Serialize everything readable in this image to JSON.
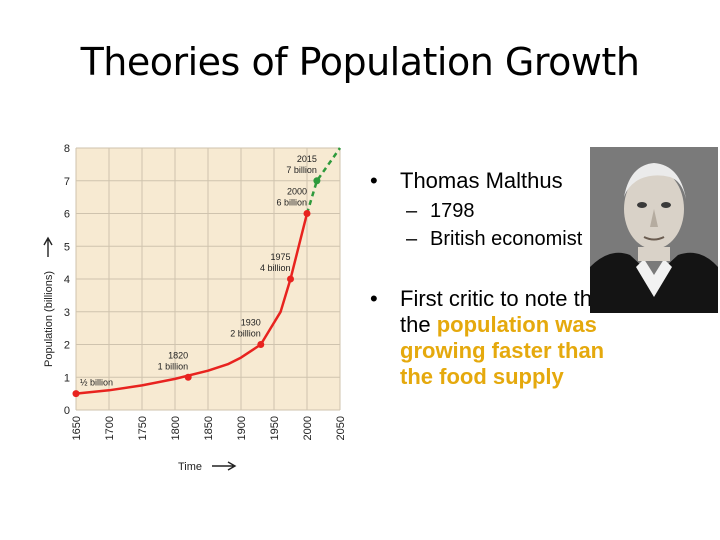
{
  "slide": {
    "title": "Theories of Population Growth"
  },
  "chart_data": {
    "type": "line",
    "ylabel": "Population (billions)",
    "xlabel": "Time",
    "xlim": [
      1650,
      2050
    ],
    "ylim": [
      0,
      8
    ],
    "x_ticks": [
      "1650",
      "1700",
      "1750",
      "1800",
      "1850",
      "1900",
      "1950",
      "2000",
      "2050"
    ],
    "y_ticks": [
      "0",
      "1",
      "2",
      "3",
      "4",
      "5",
      "6",
      "7",
      "8"
    ],
    "grid": true,
    "background_color": "#f7ead2",
    "series": [
      {
        "color": "#e8231f",
        "x": [
          1650,
          1700,
          1750,
          1800,
          1850,
          1880,
          1900,
          1915,
          1930,
          1945,
          1960,
          1975,
          1985,
          2000
        ],
        "y": [
          0.5,
          0.6,
          0.75,
          0.95,
          1.2,
          1.4,
          1.6,
          1.8,
          2.0,
          2.5,
          3.0,
          4.0,
          4.8,
          6.0
        ]
      },
      {
        "color": "#2e9a3c",
        "style": "dashed",
        "x": [
          2000,
          2015,
          2050
        ],
        "y": [
          6.0,
          7.0,
          8.0
        ]
      }
    ],
    "markers": [
      {
        "x": 1650,
        "y": 0.5,
        "label": "½ billion",
        "color": "#e8231f"
      },
      {
        "x": 1820,
        "y": 1.0,
        "label_year": "1820",
        "label_value": "1 billion",
        "color": "#e8231f"
      },
      {
        "x": 1930,
        "y": 2.0,
        "label_year": "1930",
        "label_value": "2 billion",
        "color": "#e8231f"
      },
      {
        "x": 1975,
        "y": 4.0,
        "label_year": "1975",
        "label_value": "4 billion",
        "color": "#e8231f"
      },
      {
        "x": 2000,
        "y": 6.0,
        "label_year": "2000",
        "label_value": "6 billion",
        "color": "#e8231f"
      },
      {
        "x": 2015,
        "y": 7.0,
        "label_year": "2015",
        "label_value": "7 billion",
        "color": "#2e9a3c"
      }
    ]
  },
  "bullets": {
    "malthus": {
      "marker": "•",
      "text": "Thomas Malthus",
      "subs": [
        {
          "dash": "–",
          "text": "1798"
        },
        {
          "dash": "–",
          "text": "British economist"
        }
      ]
    },
    "critic": {
      "marker": "•",
      "text_plain": "First critic to note that the",
      "text_highlight": "population was growing faster than the food supply",
      "highlight_color": "#e5a90d"
    }
  },
  "portrait": {
    "icon": "portrait-of-thomas-malthus"
  }
}
